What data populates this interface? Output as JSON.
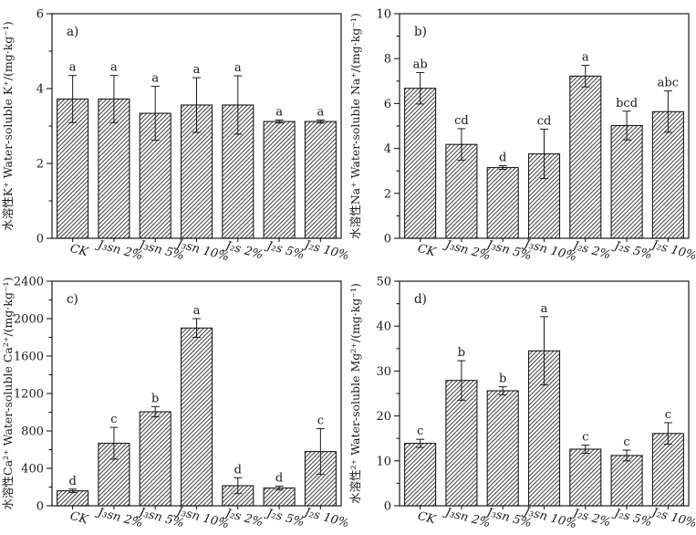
{
  "figure": {
    "background": "#ffffff",
    "ink_color": "#1a1a1a",
    "bar_fill_style": "diagonal-hatch",
    "categories": [
      "CK",
      "J₃sn 2%",
      "J₃sn 5%",
      "J₃sn 10%",
      "J₂s 2%",
      "J₂s 5%",
      "J₂s 10%"
    ]
  },
  "chart_data": [
    {
      "type": "bar",
      "panel_label": "a)",
      "ylabel": "水溶性K⁺ Water-soluble K⁺/(mg·kg⁻¹)",
      "xlabel": "",
      "categories": [
        "CK",
        "J₃sn 2%",
        "J₃sn 5%",
        "J₃sn 10%",
        "J₂s 2%",
        "J₂s 5%",
        "J₂s 10%"
      ],
      "values": [
        3.72,
        3.72,
        3.34,
        3.56,
        3.56,
        3.12,
        3.12
      ],
      "errors": [
        0.63,
        0.63,
        0.72,
        0.73,
        0.78,
        0.04,
        0.04
      ],
      "sig_letters": [
        "a",
        "a",
        "a",
        "a",
        "a",
        "a",
        "a"
      ],
      "ylim": [
        0,
        6
      ],
      "ytick_major": 2,
      "ytick_minor": 1,
      "grid": false,
      "legend": "none"
    },
    {
      "type": "bar",
      "panel_label": "b)",
      "ylabel": "水溶性Na⁺ Water-soluble Na⁺/(mg·kg⁻¹)",
      "xlabel": "",
      "categories": [
        "CK",
        "J₃sn 2%",
        "J₃sn 5%",
        "J₃sn 10%",
        "J₂s 2%",
        "J₂s 5%",
        "J₂s 10%"
      ],
      "values": [
        6.68,
        4.18,
        3.15,
        3.76,
        7.22,
        5.02,
        5.64
      ],
      "errors": [
        0.7,
        0.7,
        0.08,
        1.1,
        0.48,
        0.64,
        0.92
      ],
      "sig_letters": [
        "ab",
        "cd",
        "d",
        "cd",
        "a",
        "bcd",
        "abc"
      ],
      "ylim": [
        0,
        10
      ],
      "ytick_major": 2,
      "ytick_minor": 1,
      "grid": false,
      "legend": "none"
    },
    {
      "type": "bar",
      "panel_label": "c)",
      "ylabel": "水溶性Ca²⁺ Water-soluble Ca²⁺/(mg·kg⁻¹)",
      "xlabel": "",
      "categories": [
        "CK",
        "J₃sn 2%",
        "J₃sn 5%",
        "J₃sn 10%",
        "J₂s 2%",
        "J₂s 5%",
        "J₂s 10%"
      ],
      "values": [
        160,
        668,
        1005,
        1900,
        215,
        190,
        580
      ],
      "errors": [
        18,
        170,
        55,
        100,
        85,
        20,
        245
      ],
      "sig_letters": [
        "d",
        "c",
        "b",
        "a",
        "d",
        "d",
        "c"
      ],
      "ylim": [
        0,
        2400
      ],
      "ytick_major": 400,
      "ytick_minor": 200,
      "grid": false,
      "legend": "none"
    },
    {
      "type": "bar",
      "panel_label": "d)",
      "ylabel": "水溶性²⁺ Water-soluble Mg²⁺/(mg·kg⁻¹)",
      "xlabel": "",
      "categories": [
        "CK",
        "J₃sn 2%",
        "J₃sn 5%",
        "J₃sn 10%",
        "J₂s 2%",
        "J₂s 5%",
        "J₂s 10%"
      ],
      "values": [
        13.9,
        27.9,
        25.6,
        34.5,
        12.6,
        11.2,
        16.1
      ],
      "errors": [
        0.9,
        4.4,
        0.9,
        7.6,
        0.9,
        1.2,
        2.4
      ],
      "sig_letters": [
        "c",
        "b",
        "b",
        "a",
        "c",
        "c",
        "c"
      ],
      "ylim": [
        0,
        50
      ],
      "ytick_major": 10,
      "ytick_minor": 5,
      "grid": false,
      "legend": "none"
    }
  ]
}
